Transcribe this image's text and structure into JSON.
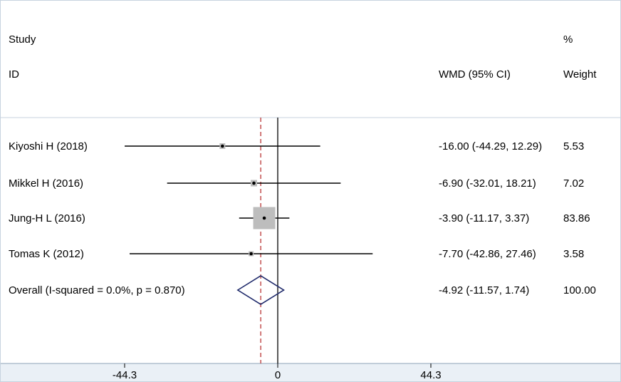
{
  "header": {
    "study_label": "Study",
    "id_label": "ID",
    "effect_label": "WMD (95% CI)",
    "pct_label": "%",
    "weight_label": "Weight"
  },
  "chart_data": {
    "type": "forest",
    "null_line": 0,
    "overall_line": -4.92,
    "xlim": [
      -44.3,
      44.3
    ],
    "ticks": [
      -44.3,
      0,
      44.3
    ],
    "tick_labels": [
      "-44.3",
      "0",
      "44.3"
    ],
    "studies": [
      {
        "label": "Kiyoshi H (2018)",
        "estimate": -16.0,
        "ci_low": -44.29,
        "ci_high": 12.29,
        "effect_text": "-16.00 (-44.29, 12.29)",
        "weight": 5.53,
        "weight_text": "5.53"
      },
      {
        "label": "Mikkel H (2016)",
        "estimate": -6.9,
        "ci_low": -32.01,
        "ci_high": 18.21,
        "effect_text": "-6.90 (-32.01, 18.21)",
        "weight": 7.02,
        "weight_text": "7.02"
      },
      {
        "label": "Jung-H L (2016)",
        "estimate": -3.9,
        "ci_low": -11.17,
        "ci_high": 3.37,
        "effect_text": "-3.90 (-11.17, 3.37)",
        "weight": 83.86,
        "weight_text": "83.86"
      },
      {
        "label": "Tomas K (2012)",
        "estimate": -7.7,
        "ci_low": -42.86,
        "ci_high": 27.46,
        "effect_text": "-7.70 (-42.86, 27.46)",
        "weight": 3.58,
        "weight_text": "3.58"
      }
    ],
    "overall": {
      "label": "Overall  (I-squared = 0.0%, p = 0.870)",
      "estimate": -4.92,
      "ci_low": -11.57,
      "ci_high": 1.74,
      "effect_text": "-4.92 (-11.57, 1.74)",
      "weight_text": "100.00"
    },
    "colors": {
      "axis_band": "#eaf0f6",
      "separator": "#c7d3df",
      "ci_line": "#000000",
      "weight_box": "#bdbdbd",
      "overall_line": "#b22222",
      "diamond": "#1f2a6b"
    }
  }
}
